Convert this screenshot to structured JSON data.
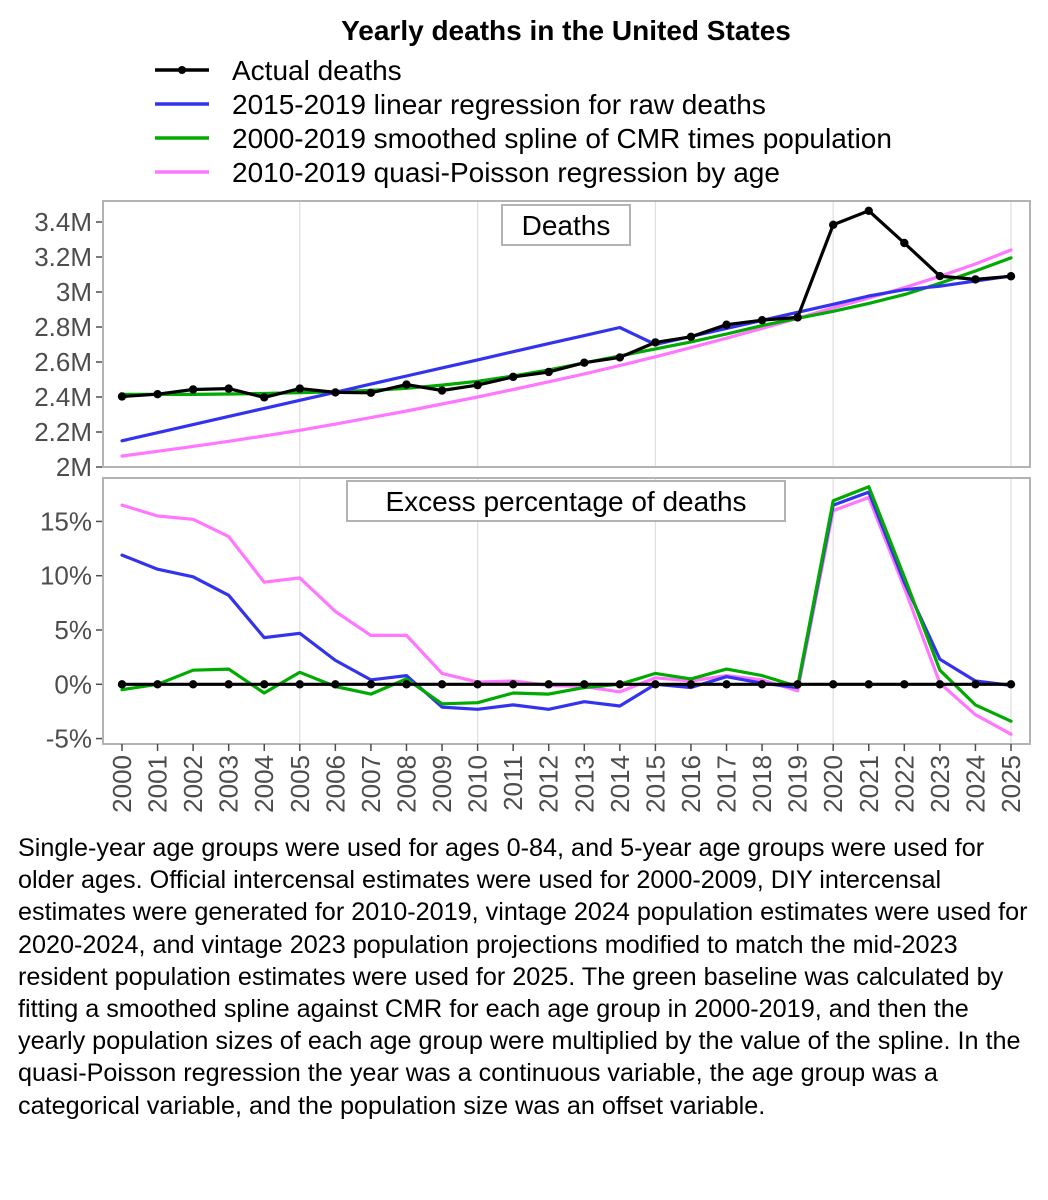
{
  "chart_data": {
    "type": "line",
    "title": "Yearly deaths in the United States",
    "x": [
      2000,
      2001,
      2002,
      2003,
      2004,
      2005,
      2006,
      2007,
      2008,
      2009,
      2010,
      2011,
      2012,
      2013,
      2014,
      2015,
      2016,
      2017,
      2018,
      2019,
      2020,
      2021,
      2022,
      2023,
      2024,
      2025
    ],
    "x_tick_labels": [
      "2000",
      "2001",
      "2002",
      "2003",
      "2004",
      "2005",
      "2006",
      "2007",
      "2008",
      "2009",
      "2010",
      "2011",
      "2012",
      "2013",
      "2014",
      "2015",
      "2016",
      "2017",
      "2018",
      "2019",
      "2020",
      "2021",
      "2022",
      "2023",
      "2024",
      "2025"
    ],
    "legend": [
      {
        "name": "Actual deaths",
        "color": "#000000",
        "marker": true
      },
      {
        "name": "2015-2019 linear regression for raw deaths",
        "color": "#3333ee",
        "marker": false
      },
      {
        "name": "2000-2019 smoothed spline of CMR times population",
        "color": "#00aa00",
        "marker": false
      },
      {
        "name": "2010-2019 quasi-Poisson regression by age",
        "color": "#ff77ff",
        "marker": false
      }
    ],
    "panels": [
      {
        "label": "Deaths",
        "ylim": [
          2000000,
          3520000
        ],
        "y_ticks": [
          2000000,
          2200000,
          2400000,
          2600000,
          2800000,
          3000000,
          3200000,
          3400000
        ],
        "y_tick_labels": [
          "2M",
          "2.2M",
          "2.4M",
          "2.6M",
          "2.8M",
          "3M",
          "3.2M",
          "3.4M"
        ],
        "series": [
          {
            "name": "2010-2019 quasi-Poisson regression by age",
            "color": "#ff77ff",
            "marker": false,
            "values": [
              2063000,
              2090000,
              2118000,
              2147000,
              2178000,
              2210000,
              2245000,
              2282000,
              2320000,
              2360000,
              2400000,
              2443000,
              2487000,
              2532000,
              2580000,
              2630000,
              2682000,
              2736000,
              2792000,
              2850000,
              2910000,
              2965000,
              3025000,
              3090000,
              3160000,
              3240000
            ]
          },
          {
            "name": "2000-2019 smoothed spline of CMR times population",
            "color": "#00aa00",
            "marker": false,
            "values": [
              2415000,
              2415000,
              2415000,
              2417000,
              2420000,
              2425000,
              2430000,
              2438000,
              2450000,
              2468000,
              2490000,
              2520000,
              2555000,
              2595000,
              2635000,
              2675000,
              2715000,
              2760000,
              2808000,
              2850000,
              2890000,
              2935000,
              2985000,
              3050000,
              3120000,
              3195000
            ]
          },
          {
            "name": "2015-2019 linear regression for raw deaths",
            "color": "#3333ee",
            "marker": false,
            "values": [
              2150000,
              2196000,
              2242000,
              2289000,
              2335000,
              2381000,
              2427000,
              2474000,
              2520000,
              2566000,
              2612000,
              2659000,
              2705000,
              2751000,
              2797000,
              2700000,
              2746000,
              2792000,
              2838000,
              2884000,
              2930000,
              2977000,
              3013000,
              3033000,
              3063000,
              3092000
            ]
          },
          {
            "name": "Actual deaths",
            "color": "#000000",
            "marker": true,
            "values": [
              2403000,
              2416000,
              2443000,
              2448000,
              2398000,
              2448000,
              2426000,
              2424000,
              2471000,
              2437000,
              2468000,
              2515000,
              2543000,
              2596000,
              2626000,
              2712000,
              2744000,
              2813000,
              2839000,
              2855000,
              3384000,
              3464000,
              3280000,
              3091000,
              3072000,
              3090000
            ]
          }
        ]
      },
      {
        "label": "Excess percentage of deaths",
        "ylim": [
          -5.5,
          19
        ],
        "y_ticks": [
          -5,
          0,
          5,
          10,
          15
        ],
        "y_tick_labels": [
          "-5%",
          "0%",
          "5%",
          "10%",
          "15%"
        ],
        "series": [
          {
            "name": "2010-2019 quasi-Poisson regression by age",
            "color": "#ff77ff",
            "marker": false,
            "values": [
              16.5,
              15.5,
              15.2,
              13.6,
              9.4,
              9.8,
              6.7,
              4.5,
              4.5,
              1.0,
              0.2,
              0.3,
              -0.1,
              -0.2,
              -0.7,
              0.6,
              0.3,
              0.8,
              0.4,
              -0.6,
              16.0,
              17.2,
              8.9,
              0.1,
              -2.8,
              -4.6
            ]
          },
          {
            "name": "2015-2019 linear regression for raw deaths",
            "color": "#3333ee",
            "marker": false,
            "values": [
              11.9,
              10.6,
              9.9,
              8.2,
              4.3,
              4.7,
              2.2,
              0.4,
              0.8,
              -2.1,
              -2.3,
              -1.9,
              -2.3,
              -1.6,
              -2.0,
              0.0,
              -0.3,
              0.7,
              0.1,
              -0.3,
              16.5,
              17.7,
              9.4,
              2.3,
              0.3,
              -0.1
            ]
          },
          {
            "name": "2000-2019 smoothed spline of CMR times population",
            "color": "#00aa00",
            "marker": false,
            "values": [
              -0.5,
              0.0,
              1.3,
              1.4,
              -0.8,
              1.1,
              -0.2,
              -0.9,
              0.5,
              -1.8,
              -1.7,
              -0.8,
              -0.9,
              -0.3,
              0.0,
              1.0,
              0.5,
              1.4,
              0.8,
              -0.2,
              16.9,
              18.2,
              9.9,
              1.3,
              -1.9,
              -3.4
            ]
          },
          {
            "name": "Actual deaths",
            "color": "#000000",
            "marker": true,
            "values": [
              0,
              0,
              0,
              0,
              0,
              0,
              0,
              0,
              0,
              0,
              0,
              0,
              0,
              0,
              0,
              0,
              0,
              0,
              0,
              0,
              0,
              0,
              0,
              0,
              0,
              0
            ]
          }
        ]
      }
    ]
  },
  "caption": "Single-year age groups were used for ages 0-84, and 5-year age groups were used for older ages. Official intercensal estimates were used for 2000-2009, DIY intercensal estimates were generated for 2010-2019, vintage 2024 population estimates were used for 2020-2024, and vintage 2023 population projections modified to match the mid-2023 resident population estimates were used for 2025. The green baseline was calculated by fitting a smoothed spline against CMR for each age group in 2000-2019, and then the yearly population sizes of each age group were multiplied by the value of the spline. In the quasi-Poisson regression the year was a continuous variable, the age group was a categorical variable, and the population size was an offset variable."
}
